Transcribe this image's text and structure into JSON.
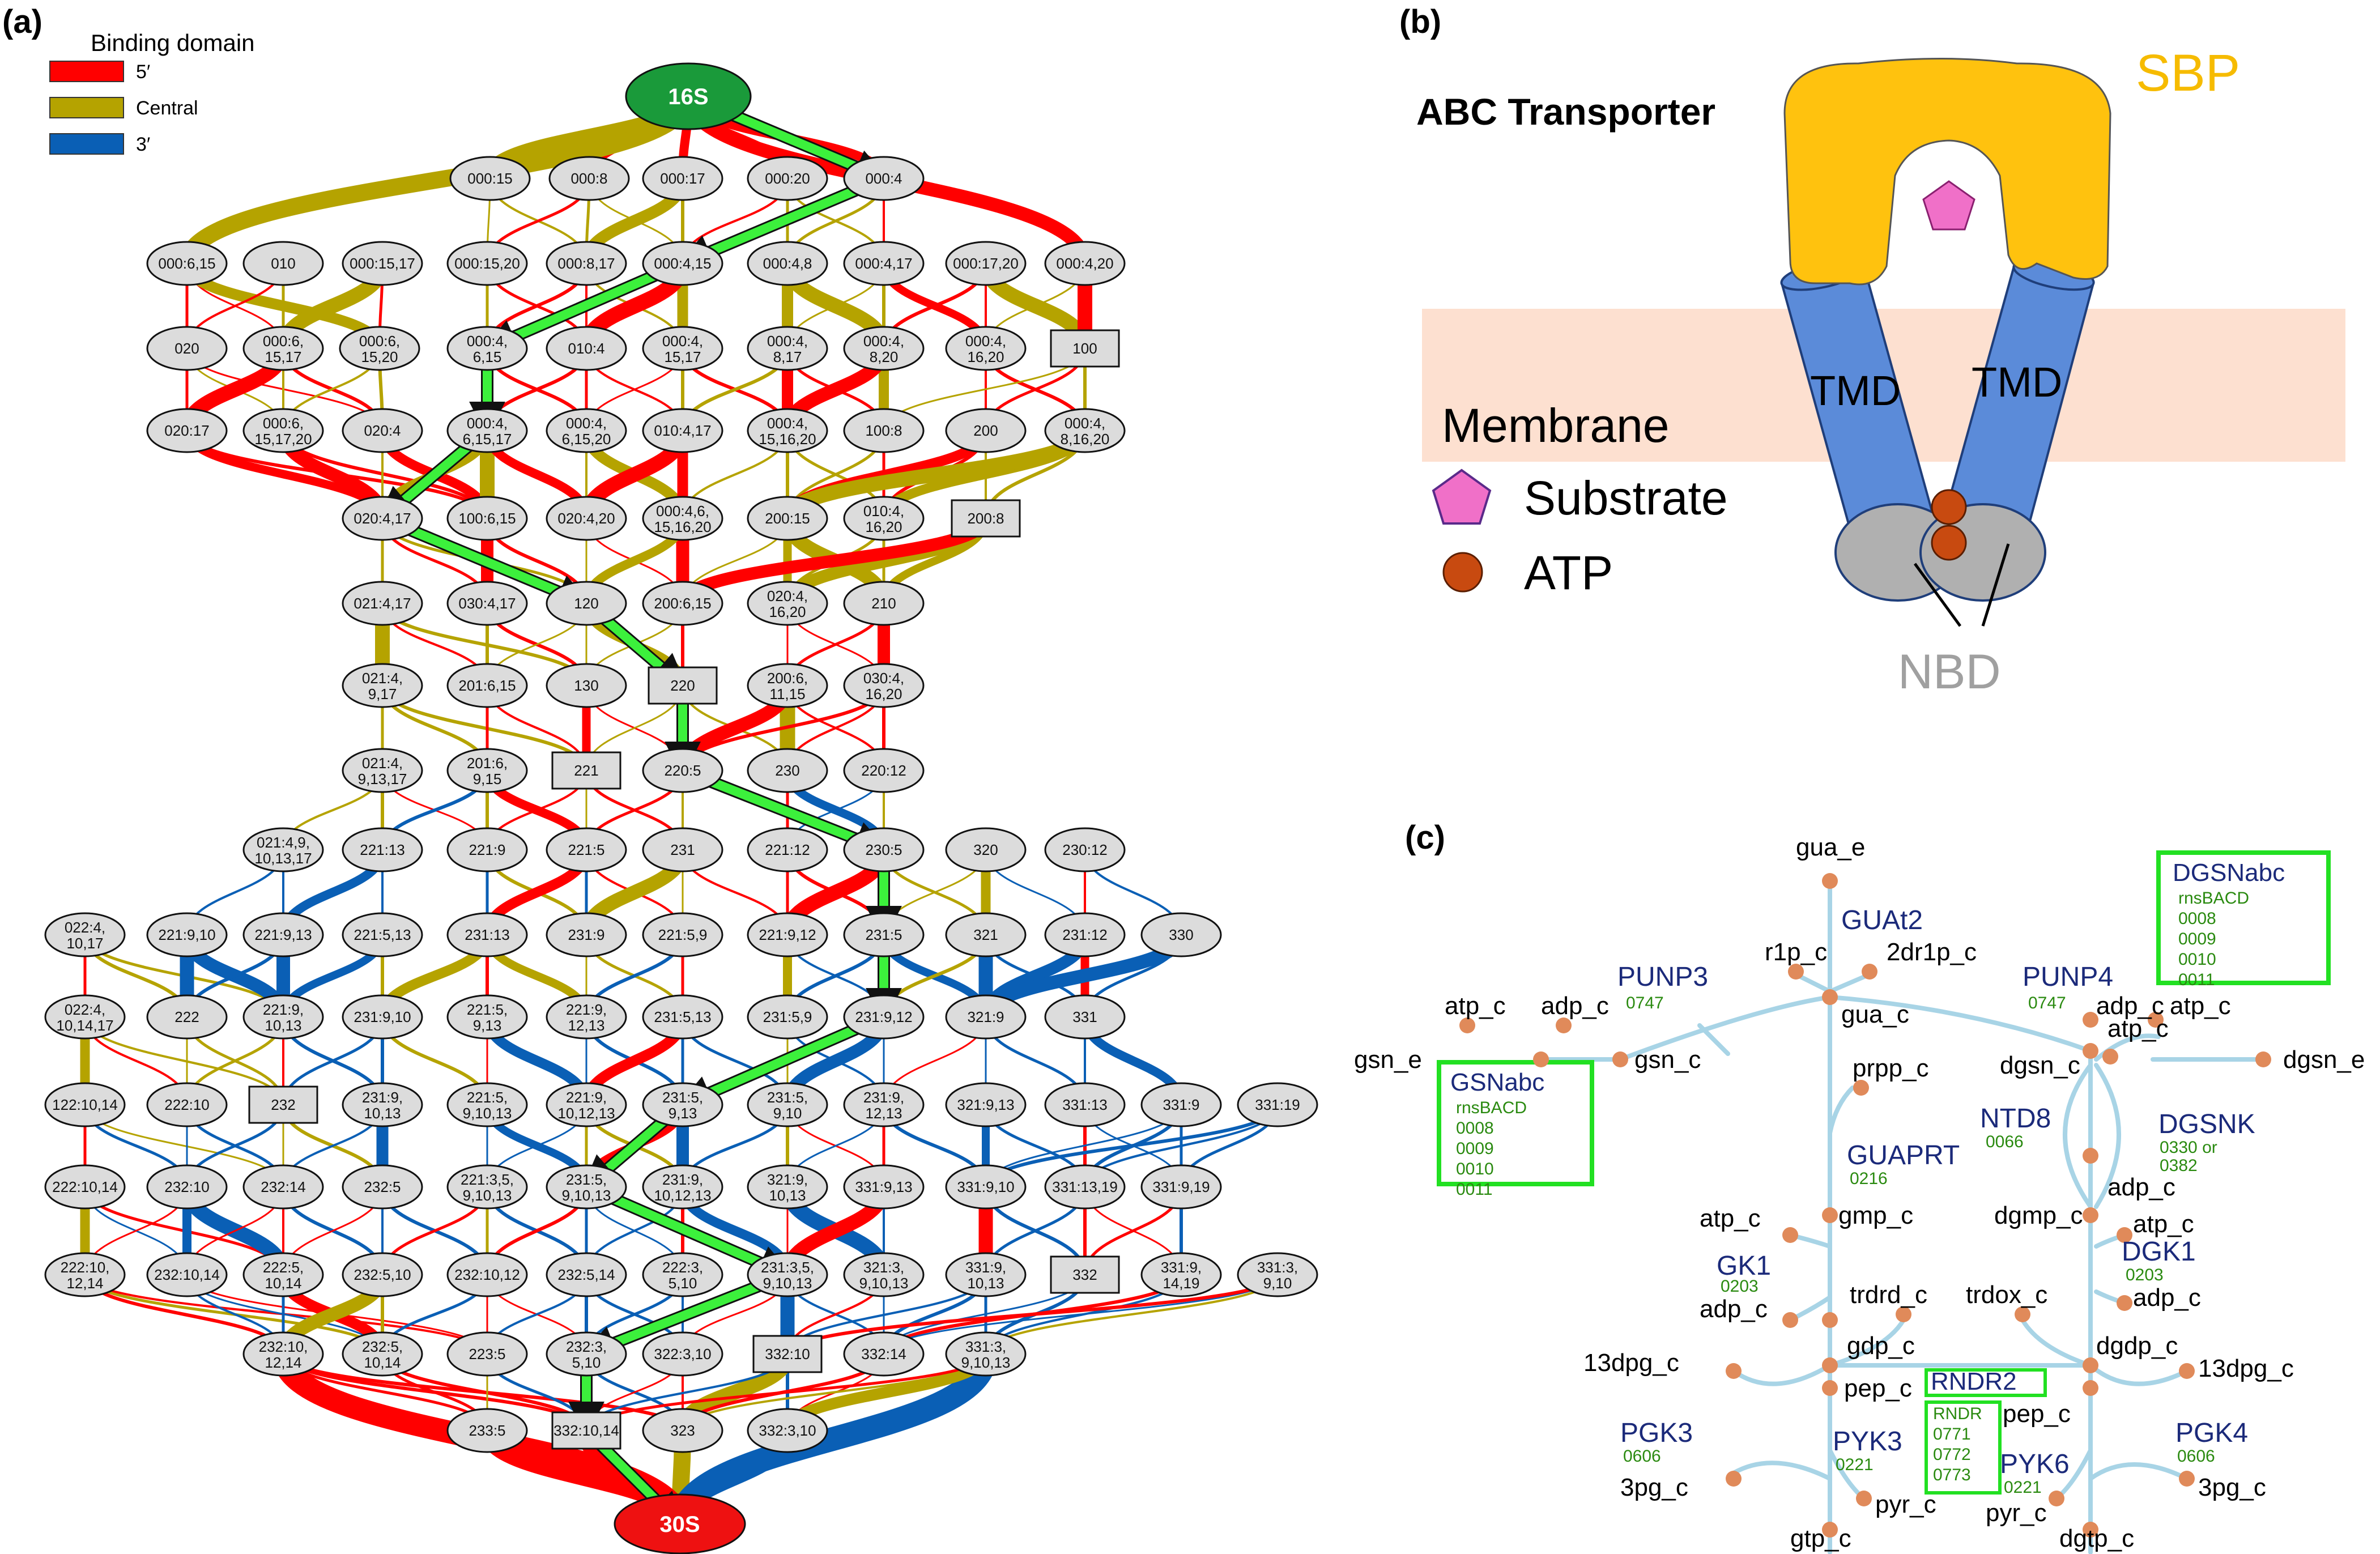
{
  "panels": {
    "a": {
      "label": "(a)",
      "legend": {
        "title": "Binding domain",
        "items": [
          {
            "label": "5′",
            "color": "#ff0000"
          },
          {
            "label": "Central",
            "color": "#b5a300"
          },
          {
            "label": "3′",
            "color": "#0a5fb5"
          }
        ]
      },
      "start_node": "16S",
      "end_node": "30S",
      "rows": [
        [
          "000:15",
          "000:8",
          "000:17",
          "000:20",
          "000:4"
        ],
        [
          "000:6,15",
          "010",
          "000:15,17",
          "000:15,20",
          "000:8,17",
          "000:4,15",
          "000:4,8",
          "000:4,17",
          "000:17,20",
          "000:4,20"
        ],
        [
          "020",
          "000:6,\n15,17",
          "000:6,\n15,20",
          "000:4,\n6,15",
          "010:4",
          "000:4,\n15,17",
          "000:4,\n8,17",
          "000:4,\n8,20",
          "000:4,\n16,20",
          "100"
        ],
        [
          "020:17",
          "000:6,\n15,17,20",
          "020:4",
          "000:4,\n6,15,17",
          "000:4,\n6,15,20",
          "010:4,17",
          "000:4,\n15,16,20",
          "100:8",
          "200",
          "000:4,\n8,16,20"
        ],
        [
          "020:4,17",
          "100:6,15",
          "020:4,20",
          "000:4,6,\n15,16,20",
          "200:15",
          "010:4,\n16,20",
          "200:8"
        ],
        [
          "021:4,17",
          "030:4,17",
          "120",
          "200:6,15",
          "020:4,\n16,20",
          "210"
        ],
        [
          "021:4,\n9,17",
          "201:6,15",
          "130",
          "220",
          "200:6,\n11,15",
          "030:4,\n16,20"
        ],
        [
          "021:4,\n9,13,17",
          "201:6,\n9,15",
          "221",
          "220:5",
          "230",
          "220:12"
        ],
        [
          "021:4,9,\n10,13,17",
          "221:13",
          "221:9",
          "221:5",
          "231",
          "221:12",
          "230:5",
          "320",
          "230:12"
        ],
        [
          "022:4,\n10,17",
          "221:9,10",
          "221:9,13",
          "221:5,13",
          "231:13",
          "231:9",
          "221:5,9",
          "221:9,12",
          "231:5",
          "321",
          "231:12",
          "330"
        ],
        [
          "022:4,\n10,14,17",
          "222",
          "221:9,\n10,13",
          "231:9,10",
          "221:5,\n9,13",
          "221:9,\n12,13",
          "231:5,13",
          "231:5,9",
          "231:9,12",
          "321:9",
          "331"
        ],
        [
          "122:10,14",
          "222:10",
          "232",
          "231:9,\n10,13",
          "221:5,\n9,10,13",
          "221:9,\n10,12,13",
          "231:5,\n9,13",
          "231:5,\n9,10",
          "231:9,\n12,13",
          "321:9,13",
          "331:13",
          "331:9",
          "331:19"
        ],
        [
          "222:10,14",
          "232:10",
          "232:14",
          "232:5",
          "221:3,5,\n9,10,13",
          "231:5,\n9,10,13",
          "231:9,\n10,12,13",
          "321:9,\n10,13",
          "331:9,13",
          "331:9,10",
          "331:13,19",
          "331:9,19"
        ],
        [
          "222:10,\n12,14",
          "232:10,14",
          "222:5,\n10,14",
          "232:5,10",
          "232:10,12",
          "232:5,14",
          "222:3,\n5,10",
          "231:3,5,\n9,10,13",
          "321:3,\n9,10,13",
          "331:9,\n10,13",
          "332",
          "331:9,\n14,19",
          "331:3,\n9,10"
        ],
        [
          "232:10,\n12,14",
          "232:5,\n10,14",
          "223:5",
          "232:3,\n5,10",
          "322:3,10",
          "332:10",
          "332:14",
          "331:3,\n9,10,13"
        ],
        [
          "233:5",
          "332:10,14",
          "323",
          "332:3,10"
        ]
      ]
    },
    "b": {
      "label": "(b)",
      "title": "ABC Transporter",
      "sbp_label": "SBP",
      "tmd_label": "TMD",
      "membrane_label": "Membrane",
      "substrate_label": "Substrate",
      "atp_label": "ATP",
      "nbd_label": "NBD",
      "colors": {
        "sbp": "#ffc20e",
        "tmd": "#5b8bd9",
        "membrane": "#fde0d0",
        "nbd": "#b0b0b0",
        "substrate": "#f070c8",
        "atp": "#c84a10"
      }
    },
    "c": {
      "label": "(c)",
      "metabolites": [
        "gua_e",
        "r1p_c",
        "2dr1p_c",
        "gua_c",
        "atp_c",
        "adp_c",
        "gsn_e",
        "gsn_c",
        "prpp_c",
        "dgsn_c",
        "adp_c",
        "atp_c",
        "dgsn_e",
        "atp_c",
        "adp_c",
        "gmp_c",
        "dgmp_c",
        "atp_c",
        "adp_c",
        "atp_c",
        "adp_c",
        "trdrd_c",
        "trdox_c",
        "gdp_c",
        "dgdp_c",
        "13dpg_c",
        "13dpg_c",
        "pep_c",
        "pep_c",
        "3pg_c",
        "pyr_c",
        "pyr_c",
        "3pg_c",
        "gtp_c",
        "dgtp_c"
      ],
      "reactions": [
        {
          "name": "GUAt2",
          "genes": ""
        },
        {
          "name": "PUNP3",
          "genes": "0747"
        },
        {
          "name": "PUNP4",
          "genes": "0747"
        },
        {
          "name": "NTD8",
          "genes": "0066"
        },
        {
          "name": "DGSNK",
          "genes": "0330 or\n0382"
        },
        {
          "name": "GUAPRT",
          "genes": "0216"
        },
        {
          "name": "GK1",
          "genes": "0203"
        },
        {
          "name": "DGK1",
          "genes": "0203"
        },
        {
          "name": "PGK3",
          "genes": "0606"
        },
        {
          "name": "PGK4",
          "genes": "0606"
        },
        {
          "name": "PYK3",
          "genes": "0221"
        },
        {
          "name": "PYK6",
          "genes": "0221"
        }
      ],
      "boxes": [
        {
          "name": "GSNabc",
          "genes": [
            "rnsBACD",
            "0008",
            "0009",
            "0010",
            "0011"
          ]
        },
        {
          "name": "DGSNabc",
          "genes": [
            "rnsBACD",
            "0008",
            "0009",
            "0010",
            "0011"
          ]
        },
        {
          "name": "RNDR2",
          "genes": [
            "RNDR",
            "0771",
            "0772",
            "0773"
          ]
        }
      ]
    }
  }
}
